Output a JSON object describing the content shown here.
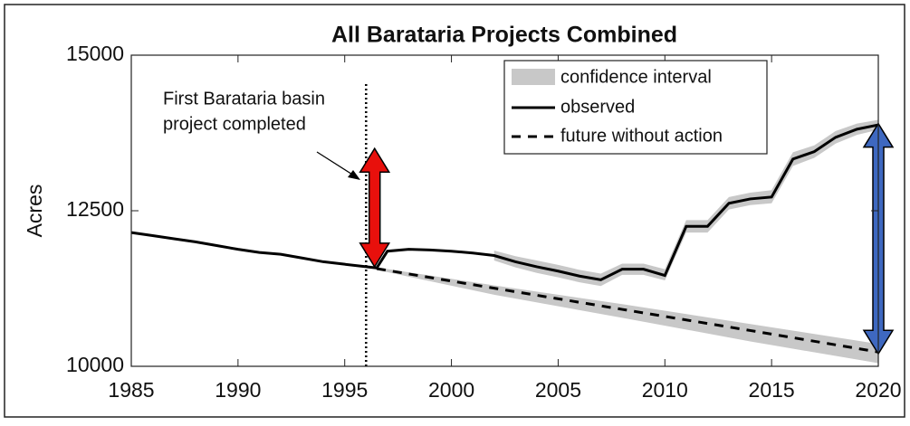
{
  "chart_data": {
    "type": "line",
    "title": "All Barataria Projects Combined",
    "ylabel": "Acres",
    "xlim": [
      1985,
      2020
    ],
    "xticks": [
      1985,
      1990,
      1995,
      2000,
      2005,
      2010,
      2015,
      2020
    ],
    "ylim": [
      10000,
      15000
    ],
    "yticks": [
      10000,
      12500,
      15000
    ],
    "legend": "upper right",
    "band": {
      "name": "confidence interval",
      "color": "#c8c8c8",
      "pieces": [
        {
          "x": [
            2002,
            2003,
            2004,
            2005,
            2006,
            2007,
            2008,
            2009,
            2010,
            2011,
            2012,
            2013,
            2014,
            2015,
            2016,
            2017,
            2018,
            2019,
            2020
          ],
          "lower": [
            11700,
            11590,
            11500,
            11430,
            11350,
            11290,
            11470,
            11470,
            11380,
            12150,
            12150,
            12520,
            12590,
            12620,
            13220,
            13350,
            13580,
            13720,
            13800
          ],
          "upper": [
            11860,
            11770,
            11700,
            11630,
            11550,
            11490,
            11650,
            11650,
            11560,
            12350,
            12350,
            12720,
            12790,
            12830,
            13440,
            13550,
            13780,
            13900,
            13960
          ]
        },
        {
          "x": [
            1996.5,
            2002,
            2008,
            2014,
            2020
          ],
          "lower": [
            11550,
            11150,
            10780,
            10400,
            10050
          ],
          "upper": [
            11590,
            11300,
            11000,
            10680,
            10360
          ]
        }
      ]
    },
    "series": [
      {
        "name": "observed",
        "color": "#000000",
        "dash": false,
        "x": [
          1985,
          1986,
          1987,
          1988,
          1989,
          1990,
          1991,
          1992,
          1993,
          1994,
          1995,
          1996,
          1996.5,
          1997,
          1998,
          1999,
          2000,
          2001,
          2002,
          2003,
          2004,
          2005,
          2006,
          2007,
          2008,
          2009,
          2010,
          2011,
          2012,
          2013,
          2014,
          2015,
          2016,
          2017,
          2018,
          2019,
          2020
        ],
        "values": [
          12150,
          12100,
          12050,
          12000,
          11940,
          11880,
          11830,
          11800,
          11740,
          11680,
          11640,
          11600,
          11580,
          11850,
          11880,
          11870,
          11850,
          11820,
          11780,
          11680,
          11600,
          11530,
          11450,
          11390,
          11560,
          11560,
          11460,
          12250,
          12250,
          12620,
          12690,
          12720,
          13330,
          13450,
          13680,
          13810,
          13880
        ]
      },
      {
        "name": "future without action",
        "color": "#000000",
        "dash": true,
        "x": [
          1996.5,
          2002,
          2008,
          2014,
          2020
        ],
        "values": [
          11570,
          11255,
          10915,
          10575,
          10230
        ]
      }
    ],
    "vline": {
      "x": 1996
    },
    "annotation": {
      "lines": [
        "First Barataria basin",
        "project completed"
      ]
    },
    "arrows": [
      {
        "x": 1996.4,
        "from": 11600,
        "to": 13500,
        "color": "#e8100c"
      },
      {
        "x": 2020,
        "from": 10200,
        "to": 13900,
        "color": "#3e68c0"
      }
    ]
  }
}
